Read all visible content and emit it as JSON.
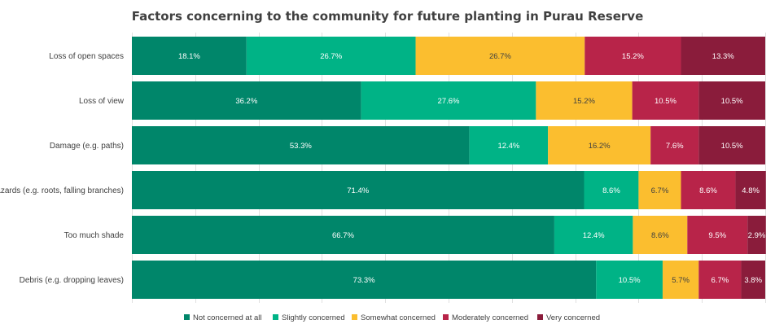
{
  "chart_data": {
    "type": "bar",
    "orientation": "horizontal",
    "stacked": true,
    "title": "Factors concerning to the community for future planting in Purau Reserve",
    "xlabel": "",
    "ylabel": "",
    "xlim": [
      0,
      100
    ],
    "grid": true,
    "legend_position": "bottom",
    "categories": [
      "Loss of open spaces",
      "Loss of view",
      "Damage (e.g. paths)",
      "Hazards (e.g. roots, falling branches)",
      "Too much shade",
      "Debris (e.g. dropping leaves)"
    ],
    "series": [
      {
        "name": "Not concerned at all",
        "color": "#00866a",
        "label_color": "#ffffff",
        "values": [
          18.1,
          36.2,
          53.3,
          71.4,
          66.7,
          73.3
        ],
        "labels": [
          "18.1%",
          "36.2%",
          "53.3%",
          "71.4%",
          "66.7%",
          "73.3%"
        ]
      },
      {
        "name": "Slightly concerned",
        "color": "#00b386",
        "label_color": "#ffffff",
        "values": [
          26.7,
          27.6,
          12.4,
          8.6,
          12.4,
          10.5
        ],
        "labels": [
          "26.7%",
          "27.6%",
          "12.4%",
          "8.6%",
          "12.4%",
          "10.5%"
        ]
      },
      {
        "name": "Somewhat concerned",
        "color": "#fbbe2f",
        "label_color": "#404040",
        "values": [
          26.7,
          15.2,
          16.2,
          6.7,
          8.6,
          5.7
        ],
        "labels": [
          "26.7%",
          "15.2%",
          "16.2%",
          "6.7%",
          "8.6%",
          "5.7%"
        ]
      },
      {
        "name": "Moderately concerned",
        "color": "#b82449",
        "label_color": "#ffffff",
        "values": [
          15.2,
          10.5,
          7.6,
          8.6,
          9.5,
          6.7
        ],
        "labels": [
          "15.2%",
          "10.5%",
          "7.6%",
          "8.6%",
          "9.5%",
          "6.7%"
        ]
      },
      {
        "name": "Very concerned",
        "color": "#8a1c3b",
        "label_color": "#ffffff",
        "values": [
          13.3,
          10.5,
          10.5,
          4.8,
          2.9,
          3.8
        ],
        "labels": [
          "13.3%",
          "10.5%",
          "10.5%",
          "4.8%",
          "2.9%",
          "3.8%"
        ]
      }
    ]
  }
}
